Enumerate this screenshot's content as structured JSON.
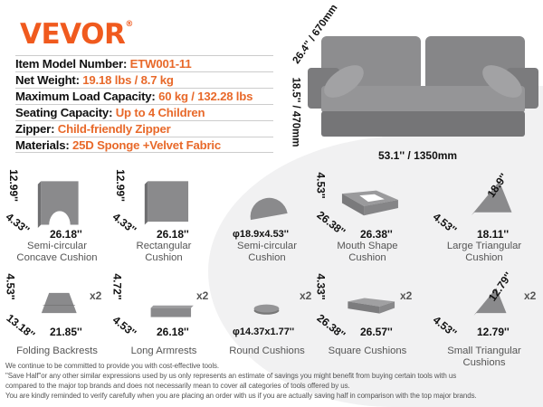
{
  "brand": {
    "logo": "VEVOR",
    "registered": "®",
    "color": "#f05a1e"
  },
  "specs": [
    {
      "label": "Item Model Number: ",
      "value": "ETW001-11"
    },
    {
      "label": "Net Weight: ",
      "value": "19.18 lbs / 8.7 kg"
    },
    {
      "label": "Maximum Load Capacity: ",
      "value": "60 kg / 132.28 lbs"
    },
    {
      "label": "Seating Capacity: ",
      "value": "Up to 4 Children"
    },
    {
      "label": "Zipper: ",
      "value": "Child-friendly Zipper"
    },
    {
      "label": "Materials: ",
      "value": "25D Sponge +Velvet Fabric"
    }
  ],
  "sofa": {
    "depth": "26.4'' / 670mm",
    "height": "18.5'' / 470mm",
    "width": "53.1'' / 1350mm"
  },
  "cushions": [
    {
      "shape": "arch",
      "label": [
        "Semi-circular",
        "Concave Cushion"
      ],
      "h": "12.99''",
      "d": "4.33''",
      "w": "26.18''",
      "qty": ""
    },
    {
      "shape": "rect",
      "label": [
        "Rectangular",
        "Cushion"
      ],
      "h": "12.99''",
      "d": "4.33''",
      "w": "26.18''",
      "qty": ""
    },
    {
      "shape": "half",
      "label": [
        "Semi-circular",
        "Cushion"
      ],
      "h": "",
      "d": "",
      "w": "φ18.9x4.53''",
      "qty": ""
    },
    {
      "shape": "frame",
      "label": [
        "Mouth Shape",
        "Cushion"
      ],
      "h": "4.53''",
      "d": "26.38''",
      "w": "26.38''",
      "qty": ""
    },
    {
      "shape": "tri",
      "label": [
        "Large Triangular",
        "Cushion"
      ],
      "h": "18.9''",
      "d": "4.53''",
      "w": "18.11''",
      "qty": ""
    },
    {
      "shape": "wedge",
      "label": [
        "Folding Backrests",
        ""
      ],
      "h": "4.53''",
      "d": "13.18''",
      "w": "21.85''",
      "qty": "x2"
    },
    {
      "shape": "bar",
      "label": [
        "Long Armrests",
        ""
      ],
      "h": "4.72''",
      "d": "4.53''",
      "w": "26.18''",
      "qty": "x2"
    },
    {
      "shape": "disc",
      "label": [
        "Round Cushions",
        ""
      ],
      "h": "",
      "d": "",
      "w": "φ14.37x1.77''",
      "qty": "x2"
    },
    {
      "shape": "slab",
      "label": [
        "Square Cushions",
        ""
      ],
      "h": "4.33''",
      "d": "26.38''",
      "w": "26.57''",
      "qty": "x2"
    },
    {
      "shape": "tri",
      "label": [
        "Small Triangular",
        "Cushions"
      ],
      "h": "12.79''",
      "d": "4.53''",
      "w": "12.79''",
      "qty": "x2"
    }
  ],
  "disclaimer": [
    "We continue to be committed to provide you with cost-effective tools.",
    "\"Save Half\"or any other similar expressions used by us only represents an estimate of savings you might benefit from buying certain tools with us",
    "compared to the major top brands and does not necessarily mean to cover all categories of tools offered by us.",
    "You are kindly reminded to verify carefully when you are placing an order with us if you are actually saving half in comparison with the top major brands."
  ],
  "colors": {
    "accent": "#e8692a",
    "cushion": "#8a8a8c"
  }
}
